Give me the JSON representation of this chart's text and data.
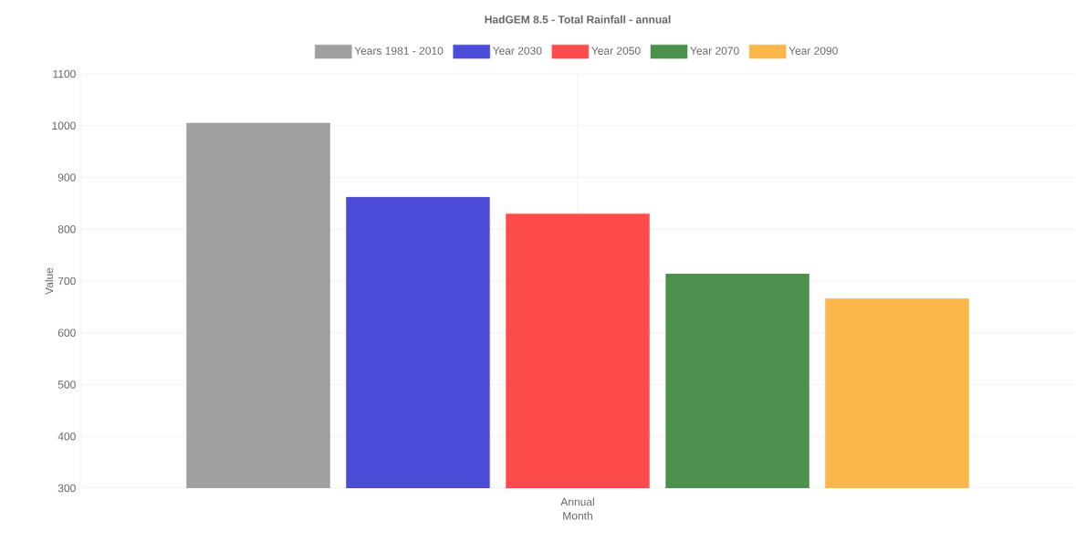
{
  "chart_data": {
    "type": "bar",
    "title": "HadGEM 8.5 - Total Rainfall - annual",
    "xlabel": "Month",
    "ylabel": "Value",
    "categories": [
      "Annual"
    ],
    "series": [
      {
        "name": "Years 1981 - 2010",
        "color": "#a0a0a0",
        "values": [
          1005
        ]
      },
      {
        "name": "Year 2030",
        "color": "#4b4bd7",
        "values": [
          862
        ]
      },
      {
        "name": "Year 2050",
        "color": "#fe4b4b",
        "values": [
          830
        ]
      },
      {
        "name": "Year 2070",
        "color": "#4b914b",
        "values": [
          714
        ]
      },
      {
        "name": "Year 2090",
        "color": "#fcb74b",
        "values": [
          666
        ]
      }
    ],
    "ylim": [
      300,
      1100
    ],
    "yticks": [
      300,
      400,
      500,
      600,
      700,
      800,
      900,
      1000,
      1100
    ],
    "grid": true,
    "legend": "top"
  }
}
